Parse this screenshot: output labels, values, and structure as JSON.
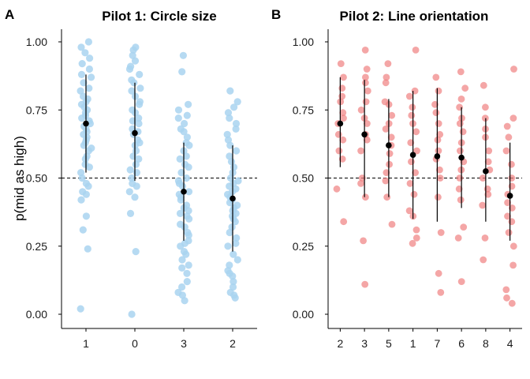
{
  "figure": {
    "panel_labels": [
      "A",
      "B"
    ],
    "ylabel": "p(mid as high)"
  },
  "chart_data": [
    {
      "type": "scatter",
      "panel": "A",
      "title": "Pilot 1: Circle size",
      "ylabel": "p(mid as high)",
      "xlabel": "",
      "categories": [
        "1",
        "0",
        "3",
        "2"
      ],
      "ylim": [
        -0.05,
        1.05
      ],
      "yticks": [
        0.0,
        0.25,
        0.5,
        0.75,
        1.0
      ],
      "ytick_labels": [
        "0.00",
        "0.25",
        "0.50",
        "0.75",
        "1.00"
      ],
      "reference_line": 0.5,
      "grid": false,
      "point_color": "#a9d4f0",
      "summary_color": "#000000",
      "series": [
        {
          "category": "1",
          "mean": 0.7,
          "lower": 0.52,
          "upper": 0.88,
          "points": [
            1.0,
            0.98,
            0.96,
            0.94,
            0.92,
            0.9,
            0.88,
            0.87,
            0.85,
            0.83,
            0.82,
            0.8,
            0.79,
            0.78,
            0.77,
            0.76,
            0.75,
            0.74,
            0.73,
            0.72,
            0.71,
            0.7,
            0.69,
            0.68,
            0.67,
            0.66,
            0.65,
            0.64,
            0.63,
            0.62,
            0.61,
            0.6,
            0.58,
            0.57,
            0.55,
            0.54,
            0.52,
            0.5,
            0.48,
            0.47,
            0.45,
            0.44,
            0.42,
            0.36,
            0.31,
            0.24,
            0.02
          ]
        },
        {
          "category": "0",
          "mean": 0.665,
          "lower": 0.49,
          "upper": 0.85,
          "points": [
            0.98,
            0.97,
            0.95,
            0.93,
            0.91,
            0.9,
            0.88,
            0.86,
            0.85,
            0.83,
            0.82,
            0.8,
            0.78,
            0.77,
            0.75,
            0.74,
            0.72,
            0.71,
            0.7,
            0.68,
            0.67,
            0.66,
            0.64,
            0.63,
            0.62,
            0.6,
            0.58,
            0.57,
            0.55,
            0.53,
            0.52,
            0.5,
            0.48,
            0.47,
            0.45,
            0.43,
            0.37,
            0.23,
            0.0
          ]
        },
        {
          "category": "3",
          "mean": 0.45,
          "lower": 0.27,
          "upper": 0.63,
          "points": [
            0.95,
            0.89,
            0.77,
            0.75,
            0.73,
            0.72,
            0.7,
            0.68,
            0.67,
            0.65,
            0.63,
            0.62,
            0.6,
            0.58,
            0.57,
            0.55,
            0.54,
            0.52,
            0.5,
            0.49,
            0.48,
            0.47,
            0.45,
            0.44,
            0.43,
            0.42,
            0.4,
            0.39,
            0.38,
            0.37,
            0.36,
            0.35,
            0.33,
            0.32,
            0.3,
            0.29,
            0.27,
            0.26,
            0.25,
            0.23,
            0.22,
            0.2,
            0.18,
            0.17,
            0.15,
            0.12,
            0.1,
            0.08,
            0.07,
            0.05
          ]
        },
        {
          "category": "2",
          "mean": 0.425,
          "lower": 0.23,
          "upper": 0.62,
          "points": [
            0.82,
            0.78,
            0.76,
            0.74,
            0.72,
            0.7,
            0.68,
            0.66,
            0.64,
            0.62,
            0.6,
            0.58,
            0.56,
            0.54,
            0.52,
            0.5,
            0.49,
            0.48,
            0.47,
            0.46,
            0.45,
            0.44,
            0.43,
            0.42,
            0.41,
            0.4,
            0.39,
            0.38,
            0.37,
            0.36,
            0.35,
            0.34,
            0.32,
            0.3,
            0.28,
            0.26,
            0.25,
            0.22,
            0.2,
            0.18,
            0.16,
            0.15,
            0.14,
            0.12,
            0.1,
            0.08,
            0.07,
            0.06
          ]
        }
      ]
    },
    {
      "type": "scatter",
      "panel": "B",
      "title": "Pilot 2: Line orientation",
      "ylabel": "",
      "xlabel": "",
      "categories": [
        "2",
        "3",
        "5",
        "1",
        "7",
        "6",
        "8",
        "4"
      ],
      "ylim": [
        -0.05,
        1.05
      ],
      "yticks": [
        0.0,
        0.25,
        0.5,
        0.75,
        1.0
      ],
      "ytick_labels": [
        "0.00",
        "0.25",
        "0.50",
        "0.75",
        "1.00"
      ],
      "reference_line": 0.5,
      "grid": false,
      "point_color": "#f08080",
      "summary_color": "#000000",
      "series": [
        {
          "category": "2",
          "mean": 0.7,
          "lower": 0.54,
          "upper": 0.87,
          "points": [
            0.92,
            0.87,
            0.83,
            0.8,
            0.78,
            0.74,
            0.72,
            0.7,
            0.66,
            0.64,
            0.6,
            0.57,
            0.46,
            0.34
          ]
        },
        {
          "category": "3",
          "mean": 0.66,
          "lower": 0.43,
          "upper": 0.86,
          "points": [
            0.97,
            0.9,
            0.87,
            0.85,
            0.82,
            0.78,
            0.75,
            0.72,
            0.7,
            0.66,
            0.64,
            0.6,
            0.5,
            0.48,
            0.43,
            0.27,
            0.11
          ]
        },
        {
          "category": "5",
          "mean": 0.62,
          "lower": 0.43,
          "upper": 0.79,
          "points": [
            0.92,
            0.87,
            0.85,
            0.78,
            0.77,
            0.73,
            0.7,
            0.68,
            0.65,
            0.62,
            0.59,
            0.55,
            0.52,
            0.49,
            0.43,
            0.33
          ]
        },
        {
          "category": "1",
          "mean": 0.585,
          "lower": 0.35,
          "upper": 0.82,
          "points": [
            0.97,
            0.82,
            0.8,
            0.76,
            0.73,
            0.7,
            0.67,
            0.63,
            0.6,
            0.56,
            0.52,
            0.48,
            0.44,
            0.38,
            0.36,
            0.31,
            0.28,
            0.26
          ]
        },
        {
          "category": "7",
          "mean": 0.58,
          "lower": 0.34,
          "upper": 0.83,
          "points": [
            0.87,
            0.82,
            0.77,
            0.74,
            0.7,
            0.66,
            0.64,
            0.6,
            0.57,
            0.53,
            0.5,
            0.43,
            0.3,
            0.15,
            0.08
          ]
        },
        {
          "category": "6",
          "mean": 0.575,
          "lower": 0.39,
          "upper": 0.76,
          "points": [
            0.89,
            0.83,
            0.79,
            0.76,
            0.72,
            0.7,
            0.67,
            0.63,
            0.6,
            0.56,
            0.53,
            0.5,
            0.46,
            0.42,
            0.32,
            0.28,
            0.12
          ]
        },
        {
          "category": "8",
          "mean": 0.525,
          "lower": 0.34,
          "upper": 0.72,
          "points": [
            0.84,
            0.76,
            0.72,
            0.68,
            0.65,
            0.6,
            0.56,
            0.53,
            0.5,
            0.46,
            0.44,
            0.4,
            0.28,
            0.2
          ]
        },
        {
          "category": "4",
          "mean": 0.435,
          "lower": 0.27,
          "upper": 0.63,
          "points": [
            0.9,
            0.72,
            0.69,
            0.65,
            0.6,
            0.55,
            0.5,
            0.47,
            0.44,
            0.41,
            0.39,
            0.36,
            0.34,
            0.3,
            0.25,
            0.18,
            0.09,
            0.06,
            0.04
          ]
        }
      ]
    }
  ]
}
